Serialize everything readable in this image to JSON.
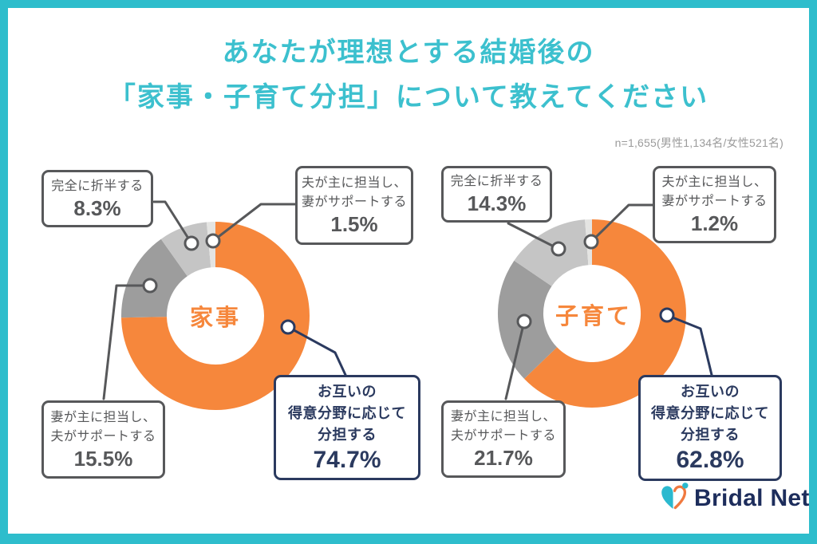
{
  "title": {
    "line1": "あなたが理想とする結婚後の",
    "line2": "「家事・子育て分担」について教えてください"
  },
  "sample_note": "n=1,655(男性1,134名/女性521名)",
  "colors": {
    "frame_teal": "#2EBDCC",
    "title_teal": "#3CC0CE",
    "orange": "#F6873C",
    "gray_dark": "#9D9D9D",
    "gray_light": "#C5C5C5",
    "gray_pale": "#E4E4E2",
    "navy": "#2B3A5F",
    "line_gray": "#57585A",
    "note_gray": "#9B9B9B",
    "segment_colors": [
      "#F6873C",
      "#9D9D9D",
      "#C5C5C5",
      "#E4E4E2"
    ]
  },
  "chart_data": [
    {
      "type": "pie",
      "variant": "donut",
      "title": "家事",
      "center_label": "家事",
      "start_angle": "top",
      "direction": "clockwise",
      "labels": [
        "お互いの得意分野に応じて分担する",
        "妻が主に担当し、夫がサポートする",
        "完全に折半する",
        "夫が主に担当し、妻がサポートする"
      ],
      "values": [
        74.7,
        15.5,
        8.3,
        1.5
      ],
      "callouts": [
        {
          "lines": [
            "完全に折半する"
          ],
          "pct": "8.3%"
        },
        {
          "lines": [
            "夫が主に担当し、",
            "妻がサポートする"
          ],
          "pct": "1.5%"
        },
        {
          "lines": [
            "妻が主に担当し、",
            "夫がサポートする"
          ],
          "pct": "15.5%"
        },
        {
          "lines": [
            "お互いの",
            "得意分野に応じて",
            "分担する"
          ],
          "pct": "74.7%"
        }
      ]
    },
    {
      "type": "pie",
      "variant": "donut",
      "title": "子育て",
      "center_label": "子育て",
      "start_angle": "top",
      "direction": "clockwise",
      "labels": [
        "お互いの得意分野に応じて分担する",
        "妻が主に担当し、夫がサポートする",
        "完全に折半する",
        "夫が主に担当し、妻がサポートする"
      ],
      "values": [
        62.8,
        21.7,
        14.3,
        1.2
      ],
      "callouts": [
        {
          "lines": [
            "完全に折半する"
          ],
          "pct": "14.3%"
        },
        {
          "lines": [
            "夫が主に担当し、",
            "妻がサポートする"
          ],
          "pct": "1.2%"
        },
        {
          "lines": [
            "妻が主に担当し、",
            "夫がサポートする"
          ],
          "pct": "21.7%"
        },
        {
          "lines": [
            "お互いの",
            "得意分野に応じて",
            "分担する"
          ],
          "pct": "62.8%"
        }
      ]
    }
  ],
  "logo": {
    "text": "Bridal Net"
  }
}
